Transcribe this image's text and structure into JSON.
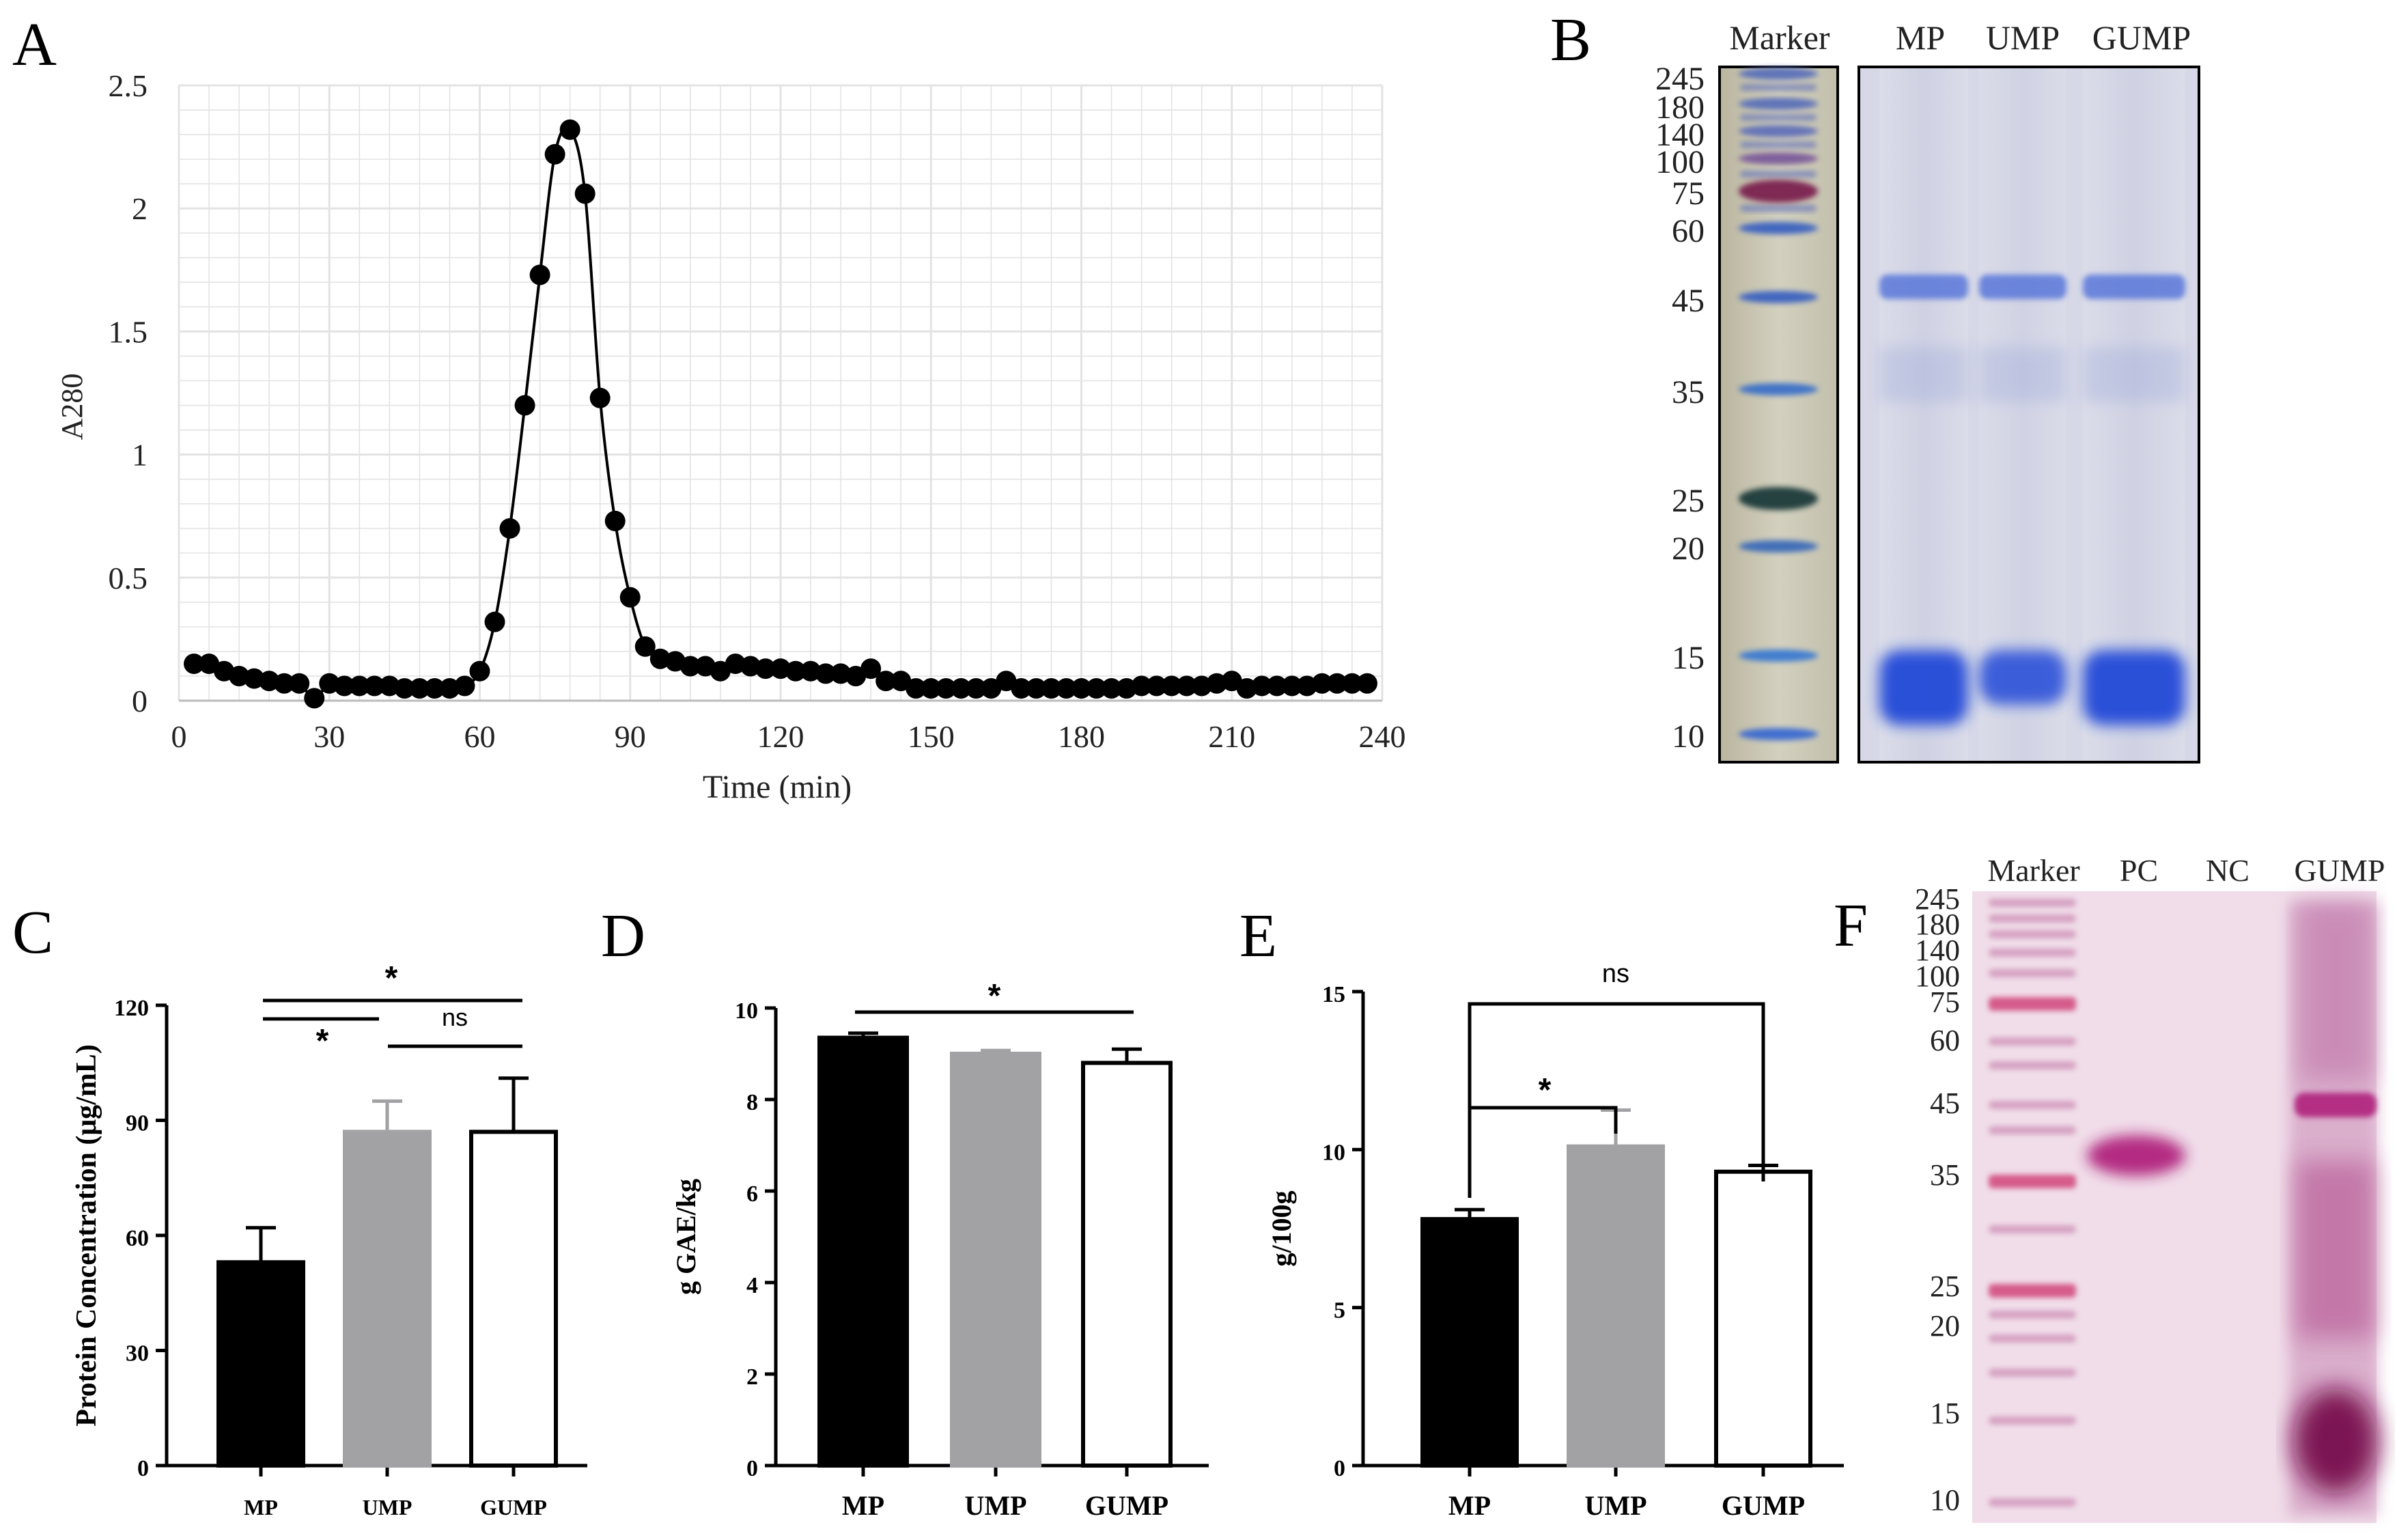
{
  "colors": {
    "black": "#000000",
    "grey": "#a2a2a5",
    "white": "#ffffff",
    "grid": "#e3e3e3",
    "coomassie_bg": "#d4d6e6",
    "coomassie_band": "#2f4fd0",
    "marker_bg": "#c7c3b0",
    "western_bg": "#f1dcea",
    "western_band": "#b0207d"
  },
  "panels": {
    "A": {
      "letter": "A"
    },
    "B": {
      "letter": "B"
    },
    "C": {
      "letter": "C"
    },
    "D": {
      "letter": "D"
    },
    "E": {
      "letter": "E"
    },
    "F": {
      "letter": "F"
    }
  },
  "chart_data": [
    {
      "panel": "A",
      "type": "line",
      "title": "",
      "xlabel": "Time (min)",
      "ylabel": "A280",
      "xlim": [
        0,
        240
      ],
      "ylim": [
        0,
        2.5
      ],
      "xticks": [
        0,
        30,
        60,
        90,
        120,
        150,
        180,
        210,
        240
      ],
      "yticks": [
        0,
        0.5,
        1,
        1.5,
        2,
        2.5
      ],
      "ytick_labels": [
        "0",
        "0.5",
        "1",
        "1.5",
        "2",
        "2.5"
      ],
      "grid": true,
      "x": [
        3,
        6,
        9,
        12,
        15,
        18,
        21,
        24,
        27,
        30,
        33,
        36,
        39,
        42,
        45,
        48,
        51,
        54,
        57,
        60,
        63,
        66,
        69,
        72,
        75,
        78,
        81,
        84,
        87,
        90,
        93,
        96,
        99,
        102,
        105,
        108,
        111,
        114,
        117,
        120,
        123,
        126,
        129,
        132,
        135,
        138,
        141,
        144,
        147,
        150,
        153,
        156,
        159,
        162,
        165,
        168,
        171,
        174,
        177,
        180,
        183,
        186,
        189,
        192,
        195,
        198,
        201,
        204,
        207,
        210,
        213,
        216,
        219,
        222,
        225,
        228,
        231,
        234,
        237
      ],
      "y": [
        0.15,
        0.15,
        0.12,
        0.1,
        0.09,
        0.08,
        0.07,
        0.07,
        0.01,
        0.07,
        0.06,
        0.06,
        0.06,
        0.06,
        0.05,
        0.05,
        0.05,
        0.05,
        0.06,
        0.12,
        0.32,
        0.7,
        1.2,
        1.73,
        2.22,
        2.32,
        2.06,
        1.23,
        0.73,
        0.42,
        0.22,
        0.17,
        0.16,
        0.14,
        0.14,
        0.12,
        0.15,
        0.14,
        0.13,
        0.13,
        0.12,
        0.12,
        0.11,
        0.11,
        0.1,
        0.13,
        0.08,
        0.08,
        0.05,
        0.05,
        0.05,
        0.05,
        0.05,
        0.05,
        0.08,
        0.05,
        0.05,
        0.05,
        0.05,
        0.05,
        0.05,
        0.05,
        0.05,
        0.06,
        0.06,
        0.06,
        0.06,
        0.06,
        0.07,
        0.08,
        0.05,
        0.06,
        0.06,
        0.06,
        0.06,
        0.07,
        0.07,
        0.07,
        0.07
      ]
    },
    {
      "panel": "C",
      "type": "bar",
      "title": "",
      "categories": [
        "MP",
        "UMP",
        "GUMP"
      ],
      "values": [
        53,
        87,
        87
      ],
      "errors": [
        9,
        8,
        14
      ],
      "bar_colors": [
        "#000000",
        "#a2a2a5",
        "#ffffff"
      ],
      "xlabel": "",
      "ylabel": "Protein Concentration (μg/mL)",
      "ylim": [
        0,
        120
      ],
      "yticks": [
        0,
        30,
        60,
        90,
        120
      ],
      "significance": [
        {
          "from": 0,
          "to": 1,
          "label": "*"
        },
        {
          "from": 1,
          "to": 2,
          "label": "ns"
        },
        {
          "from": 0,
          "to": 2,
          "label": "*"
        }
      ]
    },
    {
      "panel": "D",
      "type": "bar",
      "title": "",
      "categories": [
        "MP",
        "UMP",
        "GUMP"
      ],
      "values": [
        9.35,
        9.0,
        8.8
      ],
      "errors": [
        0.1,
        0.07,
        0.3
      ],
      "bar_colors": [
        "#000000",
        "#a2a2a5",
        "#ffffff"
      ],
      "xlabel": "",
      "ylabel": "g GAE/kg",
      "ylim": [
        0,
        10
      ],
      "yticks": [
        0,
        2,
        4,
        6,
        8,
        10
      ],
      "significance": [
        {
          "from": 0,
          "to": 2,
          "label": "*"
        }
      ]
    },
    {
      "panel": "E",
      "type": "bar",
      "title": "",
      "categories": [
        "MP",
        "UMP",
        "GUMP"
      ],
      "values": [
        7.8,
        10.1,
        9.3
      ],
      "errors": [
        0.3,
        1.15,
        0.2
      ],
      "bar_colors": [
        "#000000",
        "#a2a2a5",
        "#ffffff"
      ],
      "xlabel": "",
      "ylabel": "g/100g",
      "ylim": [
        0,
        15
      ],
      "yticks": [
        0,
        5,
        10,
        15
      ],
      "significance": [
        {
          "from": 0,
          "to": 1,
          "label": "*"
        },
        {
          "from": 0,
          "to": 2,
          "label": "ns"
        }
      ]
    }
  ],
  "gel_B": {
    "marker_header": "Marker",
    "lane_headers": [
      "MP",
      "UMP",
      "GUMP"
    ],
    "mw_labels": [
      "245",
      "180",
      "140",
      "100",
      "75",
      "60",
      "45",
      "35",
      "25",
      "20",
      "15",
      "10"
    ],
    "sample_bands_kda": [
      46,
      12
    ]
  },
  "gel_F": {
    "lane_headers": [
      "Marker",
      "PC",
      "NC",
      "GUMP"
    ],
    "mw_labels": [
      "245",
      "180",
      "140",
      "100",
      "75",
      "60",
      "45",
      "35",
      "25",
      "20",
      "15",
      "10"
    ],
    "pc_band_kda": 38,
    "gump_bands_kda": [
      45,
      12
    ]
  }
}
